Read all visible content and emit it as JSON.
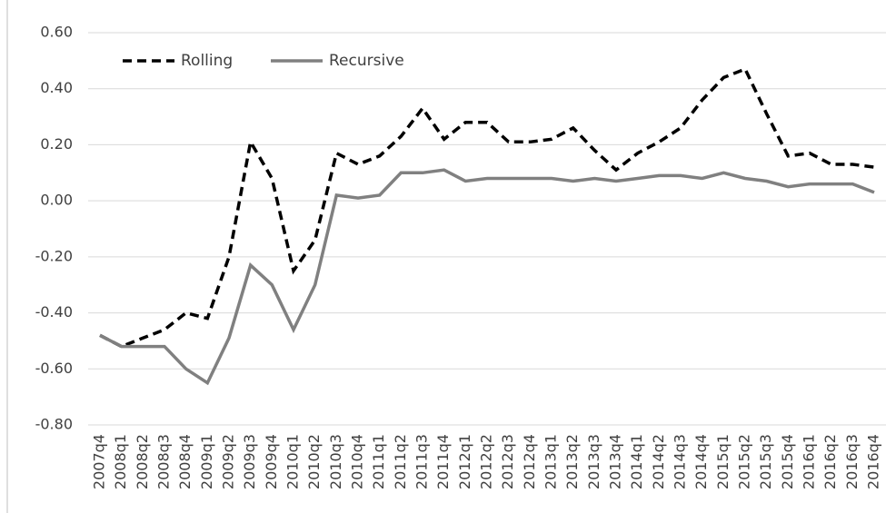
{
  "chart_data": {
    "type": "line",
    "categories": [
      "2007q4",
      "2008q1",
      "2008q2",
      "2008q3",
      "2008q4",
      "2009q1",
      "2009q2",
      "2009q3",
      "2009q4",
      "2010q1",
      "2010q2",
      "2010q3",
      "2010q4",
      "2011q1",
      "2011q2",
      "2011q3",
      "2011q4",
      "2012q1",
      "2012q2",
      "2012q3",
      "2012q4",
      "2013q1",
      "2013q2",
      "2013q3",
      "2013q4",
      "2014q1",
      "2014q2",
      "2014q3",
      "2014q4",
      "2015q1",
      "2015q2",
      "2015q3",
      "2015q4",
      "2016q1",
      "2016q2",
      "2016q3",
      "2016q4"
    ],
    "series": [
      {
        "name": "Rolling",
        "color": "#000000",
        "dashed": true,
        "values": [
          -0.48,
          -0.52,
          -0.49,
          -0.46,
          -0.4,
          -0.42,
          -0.2,
          0.21,
          0.08,
          -0.25,
          -0.14,
          0.17,
          0.13,
          0.16,
          0.23,
          0.33,
          0.22,
          0.28,
          0.28,
          0.21,
          0.21,
          0.22,
          0.26,
          0.18,
          0.11,
          0.17,
          0.21,
          0.26,
          0.36,
          0.44,
          0.47,
          0.31,
          0.16,
          0.17,
          0.13,
          0.13,
          0.12
        ]
      },
      {
        "name": "Recursive",
        "color": "#808080",
        "dashed": false,
        "values": [
          -0.48,
          -0.52,
          -0.52,
          -0.52,
          -0.6,
          -0.65,
          -0.49,
          -0.23,
          -0.3,
          -0.46,
          -0.3,
          0.02,
          0.01,
          0.02,
          0.1,
          0.1,
          0.11,
          0.07,
          0.08,
          0.08,
          0.08,
          0.08,
          0.07,
          0.08,
          0.07,
          0.08,
          0.09,
          0.09,
          0.08,
          0.1,
          0.08,
          0.07,
          0.05,
          0.06,
          0.06,
          0.06,
          0.03
        ]
      }
    ],
    "ylim": [
      -0.8,
      0.6
    ],
    "yticks": [
      {
        "value": -0.8,
        "label": "-0.80"
      },
      {
        "value": -0.6,
        "label": "-0.60"
      },
      {
        "value": -0.4,
        "label": "-0.40"
      },
      {
        "value": -0.2,
        "label": "-0.20"
      },
      {
        "value": 0,
        "label": "0.00"
      },
      {
        "value": 0.2,
        "label": "0.20"
      },
      {
        "value": 0.4,
        "label": "0.40"
      },
      {
        "value": 0.6,
        "label": "0.60"
      }
    ],
    "grid": true,
    "legend": "top-left"
  }
}
